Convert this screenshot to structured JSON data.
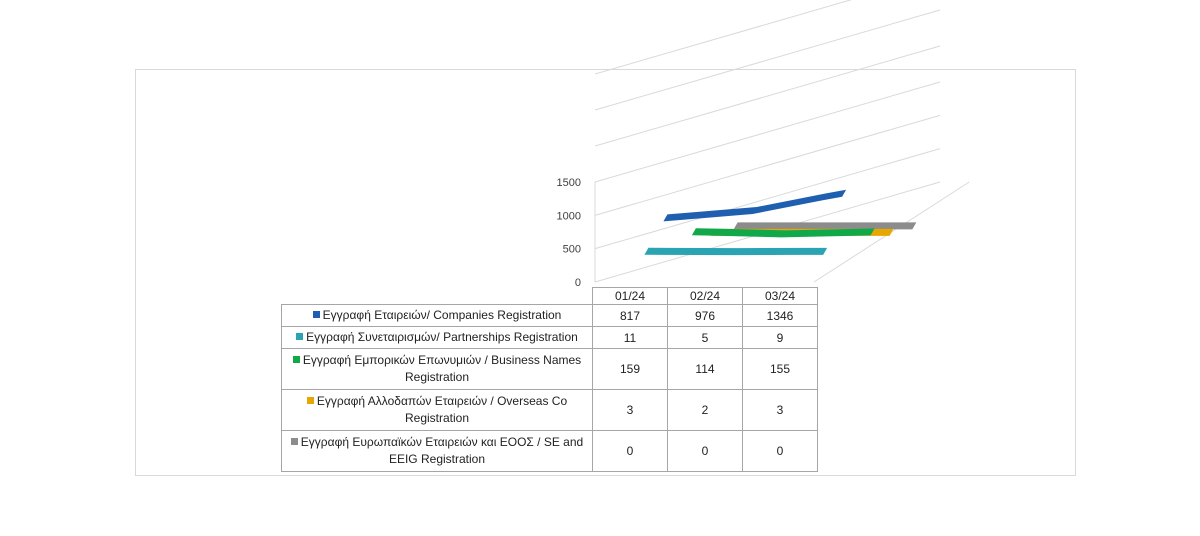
{
  "colors": {
    "companies": "#1f5fb0",
    "partnerships": "#2aa3b3",
    "business_names": "#11a84a",
    "overseas": "#e6a800",
    "se_eeig": "#8c8c8c",
    "grid": "#d9d9d9"
  },
  "chart_data": {
    "type": "line",
    "view": "3d",
    "categories": [
      "01/24",
      "02/24",
      "03/24"
    ],
    "ylim": [
      0,
      1500
    ],
    "yticks": [
      "0",
      "500",
      "1000",
      "1500"
    ],
    "series": [
      {
        "name": "Εγγραφή Εταιρειών/ Companies Registration",
        "values": [
          817,
          976,
          1346
        ],
        "color_key": "companies"
      },
      {
        "name": "Εγγραφή Συνεταιρισμών/ Partnerships Registration",
        "values": [
          11,
          5,
          9
        ],
        "color_key": "partnerships"
      },
      {
        "name": "Εγγραφή Εμπορικών Επωνυμιών / Business Names Registration",
        "values": [
          159,
          114,
          155
        ],
        "color_key": "business_names"
      },
      {
        "name": "Εγγραφή Αλλοδαπών Εταιρειών / Overseas Co Registration",
        "values": [
          3,
          2,
          3
        ],
        "color_key": "overseas"
      },
      {
        "name": "Εγγραφή Ευρωπαϊκών Εταιρειών και ΕΟΟΣ / SE and EEIG Registration",
        "values": [
          0,
          0,
          0
        ],
        "color_key": "se_eeig"
      }
    ],
    "table": {
      "rows": [
        {
          "label": "Εγγραφή  Εταιρειών/ Companies Registration",
          "values": [
            "817",
            "976",
            "1346"
          ]
        },
        {
          "label": "Εγγραφή  Συνεταιρισμών/ Partnerships Registration",
          "values": [
            "11",
            "5",
            "9"
          ]
        },
        {
          "label": "Εγγραφή  Εμπορικών Επωνυμιών / Business Names Registration",
          "values": [
            "159",
            "114",
            "155"
          ]
        },
        {
          "label": "Εγγραφή  Αλλοδαπών  Εταιρειών / Overseas Co Registration",
          "values": [
            "3",
            "2",
            "3"
          ]
        },
        {
          "label": "Εγγραφή  Ευρωπαϊκών Εταιρειών και ΕΟΟΣ / SE and EEIG Registration",
          "values": [
            "0",
            "0",
            "0"
          ]
        }
      ]
    }
  }
}
